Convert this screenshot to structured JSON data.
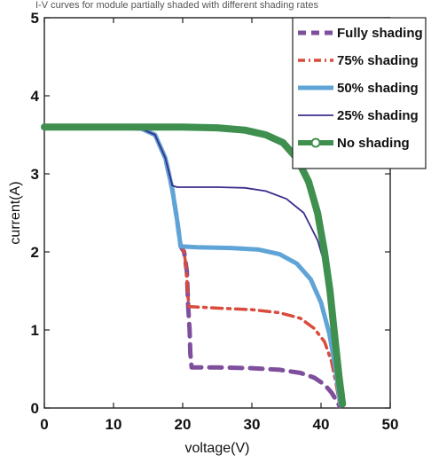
{
  "caption": "I-V curves for module partially shaded with different shading rates",
  "chart_data": {
    "type": "line",
    "title": "",
    "xlabel": "voltage(V)",
    "ylabel": "current(A)",
    "xlim": [
      0,
      50
    ],
    "ylim": [
      0,
      5
    ],
    "xticks": [
      "0",
      "10",
      "20",
      "30",
      "40",
      "50"
    ],
    "yticks": [
      "0",
      "1",
      "2",
      "3",
      "4",
      "5"
    ],
    "grid": false,
    "legend_position": "top-right",
    "series": [
      {
        "name": "Fully shading",
        "color": "#7e4f9c",
        "style": "dashed",
        "points": [
          [
            0,
            3.6
          ],
          [
            10,
            3.6
          ],
          [
            14,
            3.58
          ],
          [
            16,
            3.5
          ],
          [
            17.5,
            3.2
          ],
          [
            18.5,
            2.8
          ],
          [
            19.2,
            2.4
          ],
          [
            19.7,
            2.07
          ],
          [
            20.2,
            2.0
          ],
          [
            20.6,
            1.75
          ],
          [
            20.8,
            1.3
          ],
          [
            21,
            1.0
          ],
          [
            21.1,
            0.7
          ],
          [
            21.3,
            0.52
          ],
          [
            25,
            0.52
          ],
          [
            30,
            0.51
          ],
          [
            34,
            0.49
          ],
          [
            37,
            0.45
          ],
          [
            39,
            0.39
          ],
          [
            40.5,
            0.3
          ],
          [
            41.5,
            0.2
          ],
          [
            42.2,
            0.1
          ],
          [
            42.7,
            0.02
          ]
        ]
      },
      {
        "name": "75% shading",
        "color": "#d94b3c",
        "style": "dashdot",
        "points": [
          [
            0,
            3.6
          ],
          [
            10,
            3.6
          ],
          [
            14,
            3.58
          ],
          [
            16,
            3.5
          ],
          [
            17.5,
            3.2
          ],
          [
            18.5,
            2.8
          ],
          [
            19.2,
            2.4
          ],
          [
            19.7,
            2.07
          ],
          [
            20.2,
            2.0
          ],
          [
            20.5,
            1.8
          ],
          [
            20.7,
            1.5
          ],
          [
            20.9,
            1.3
          ],
          [
            25,
            1.28
          ],
          [
            30,
            1.26
          ],
          [
            34,
            1.22
          ],
          [
            37,
            1.15
          ],
          [
            39,
            1.02
          ],
          [
            40.5,
            0.85
          ],
          [
            41.5,
            0.6
          ],
          [
            42.2,
            0.3
          ],
          [
            42.7,
            0.03
          ]
        ]
      },
      {
        "name": "50% shading",
        "color": "#5fa4d6",
        "style": "solid-thick",
        "points": [
          [
            0,
            3.6
          ],
          [
            10,
            3.6
          ],
          [
            14,
            3.58
          ],
          [
            16,
            3.5
          ],
          [
            17.5,
            3.2
          ],
          [
            18.5,
            2.8
          ],
          [
            19.2,
            2.4
          ],
          [
            19.7,
            2.07
          ],
          [
            22,
            2.06
          ],
          [
            27,
            2.05
          ],
          [
            31,
            2.03
          ],
          [
            34,
            1.97
          ],
          [
            36.5,
            1.85
          ],
          [
            38.5,
            1.65
          ],
          [
            40,
            1.35
          ],
          [
            41.2,
            0.95
          ],
          [
            42.1,
            0.5
          ],
          [
            42.8,
            0.05
          ]
        ]
      },
      {
        "name": "25% shading",
        "color": "#3a2f8c",
        "style": "solid-thin",
        "points": [
          [
            0,
            3.6
          ],
          [
            10,
            3.6
          ],
          [
            14,
            3.58
          ],
          [
            16,
            3.5
          ],
          [
            17.5,
            3.2
          ],
          [
            18.5,
            2.85
          ],
          [
            19.2,
            2.83
          ],
          [
            25,
            2.83
          ],
          [
            29,
            2.82
          ],
          [
            32,
            2.78
          ],
          [
            35,
            2.68
          ],
          [
            37.5,
            2.5
          ],
          [
            39.5,
            2.15
          ],
          [
            41,
            1.7
          ],
          [
            42,
            1.1
          ],
          [
            42.7,
            0.5
          ],
          [
            43.1,
            0.05
          ]
        ]
      },
      {
        "name": "No shading",
        "color": "#3f8f4f",
        "style": "solid-heavy",
        "points": [
          [
            0,
            3.6
          ],
          [
            10,
            3.6
          ],
          [
            20,
            3.6
          ],
          [
            25,
            3.59
          ],
          [
            29,
            3.56
          ],
          [
            32,
            3.5
          ],
          [
            34.5,
            3.4
          ],
          [
            36.5,
            3.2
          ],
          [
            38.2,
            2.9
          ],
          [
            39.5,
            2.5
          ],
          [
            40.5,
            2.0
          ],
          [
            41.3,
            1.5
          ],
          [
            42,
            0.9
          ],
          [
            42.6,
            0.4
          ],
          [
            43.1,
            0.05
          ]
        ]
      }
    ]
  }
}
